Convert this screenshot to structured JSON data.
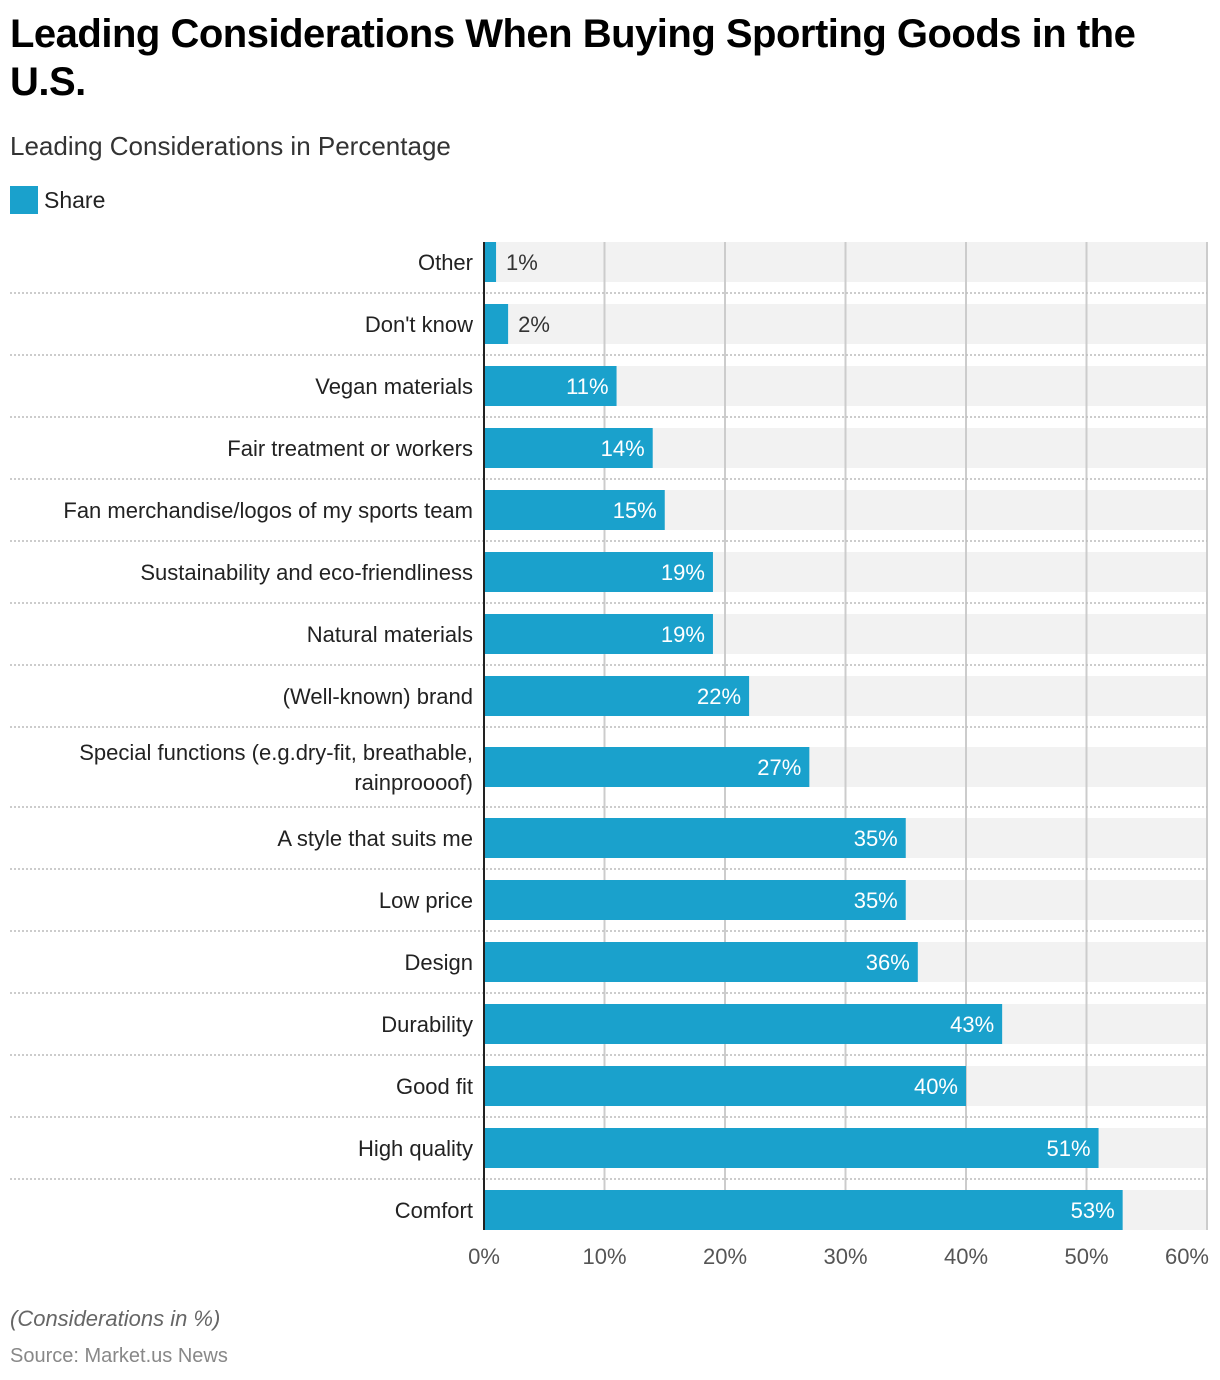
{
  "header": {
    "title": "Leading Considerations When Buying Sporting Goods in the U.S.",
    "subtitle": "Leading Considerations in Percentage"
  },
  "legend": {
    "label": "Share",
    "color": "#1aa1cc"
  },
  "footer": {
    "note": "(Considerations in %)",
    "source": "Source: Market.us News"
  },
  "colors": {
    "bar": "#1aa1cc",
    "track": "#f2f2f2",
    "grid": "#cccccc",
    "label_inside": "#ffffff",
    "label_outside": "#333333"
  },
  "chart_data": {
    "type": "bar",
    "orientation": "horizontal",
    "title": "Leading Considerations When Buying Sporting Goods in the U.S.",
    "subtitle": "Leading Considerations in Percentage",
    "xlabel": "",
    "ylabel": "",
    "xlim": [
      0,
      60
    ],
    "x_ticks": [
      "0%",
      "10%",
      "20%",
      "30%",
      "40%",
      "50%",
      "60%"
    ],
    "grid": true,
    "legend_position": "top-left",
    "categories": [
      "Other",
      "Don't know",
      "Vegan materials",
      "Fair treatment or workers",
      "Fan merchandise/logos of my sports team",
      "Sustainability and eco-friendliness",
      "Natural materials",
      "(Well-known) brand",
      "Special functions (e.g.dry-fit, breathable, rainproooof)",
      "A style that suits me",
      "Low price",
      "Design",
      "Durability",
      "Good fit",
      "High quality",
      "Comfort"
    ],
    "series": [
      {
        "name": "Share",
        "values": [
          1,
          2,
          11,
          14,
          15,
          19,
          19,
          22,
          27,
          35,
          35,
          36,
          43,
          40,
          51,
          53
        ],
        "labels": [
          "1%",
          "2%",
          "11%",
          "14%",
          "15%",
          "19%",
          "19%",
          "22%",
          "27%",
          "35%",
          "35%",
          "36%",
          "43%",
          "40%",
          "51%",
          "53%"
        ]
      }
    ]
  }
}
